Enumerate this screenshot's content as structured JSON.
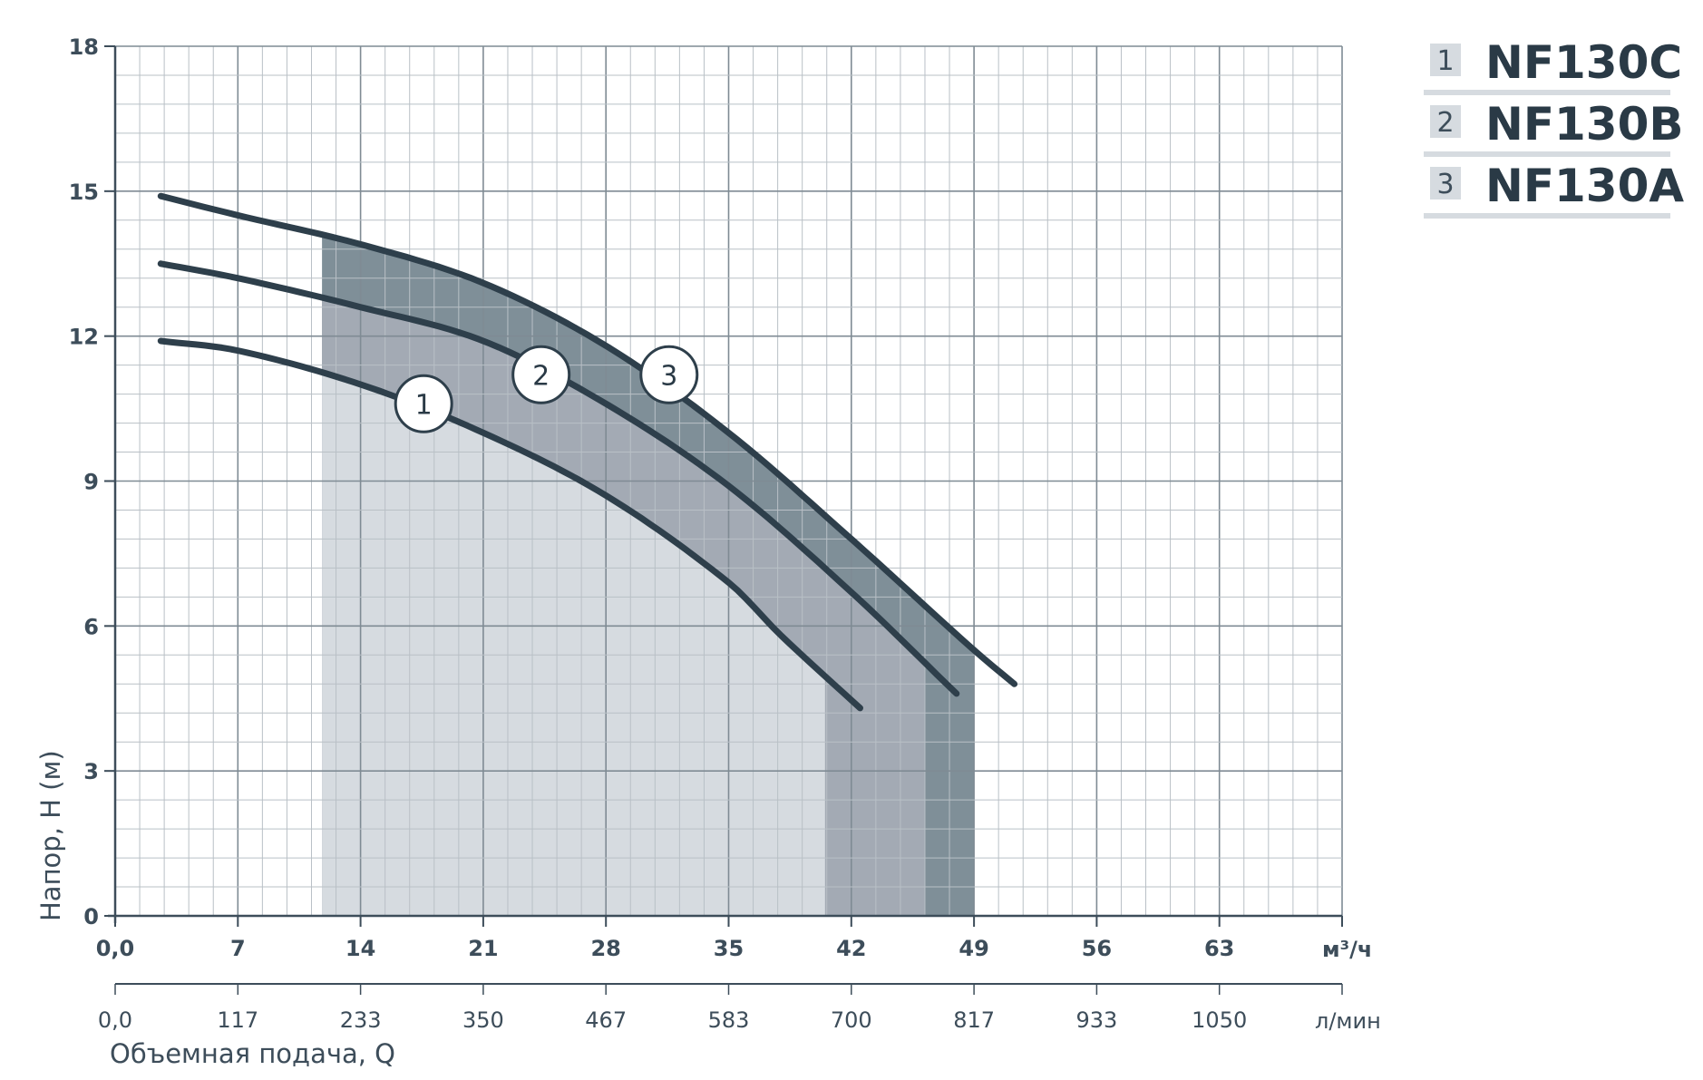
{
  "chart_data": {
    "type": "line",
    "xlabel": "Объемная подача, Q",
    "ylabel": "Напор, H (м)",
    "x_unit": "м³/ч",
    "x2_unit": "л/мин",
    "xlim": [
      0,
      70
    ],
    "ylim": [
      0,
      18
    ],
    "x_ticks": [
      "0,0",
      "7",
      "14",
      "21",
      "28",
      "35",
      "42",
      "49",
      "56",
      "63"
    ],
    "x2_ticks": [
      "0,0",
      "117",
      "233",
      "350",
      "467",
      "583",
      "700",
      "817",
      "933",
      "1050"
    ],
    "y_ticks": [
      "0",
      "3",
      "6",
      "9",
      "12",
      "15",
      "18"
    ],
    "grid": true,
    "legend_position": "top-right",
    "colors": {
      "curve": "#2e3f4b",
      "grid_major": "#7f8b94",
      "grid_minor": "#b9c0c6",
      "zone1": "#d6dbe0",
      "zone2": "#a3aab4",
      "zone3": "#7f8f98",
      "legend_box": "#d6dbe0"
    },
    "series": [
      {
        "id": "1",
        "name": "NF130C",
        "points": [
          [
            2.6,
            11.9
          ],
          [
            7,
            11.7
          ],
          [
            14,
            11.0
          ],
          [
            21,
            10.0
          ],
          [
            28,
            8.7
          ],
          [
            35,
            6.9
          ],
          [
            38,
            5.8
          ],
          [
            42.5,
            4.3
          ]
        ],
        "operating_range": [
          11.8,
          40.5
        ]
      },
      {
        "id": "2",
        "name": "NF130B",
        "points": [
          [
            2.6,
            13.5
          ],
          [
            7,
            13.2
          ],
          [
            14,
            12.6
          ],
          [
            21,
            11.9
          ],
          [
            28,
            10.6
          ],
          [
            35,
            8.9
          ],
          [
            42,
            6.7
          ],
          [
            48.0,
            4.6
          ]
        ],
        "operating_range": [
          11.8,
          46.2
        ]
      },
      {
        "id": "3",
        "name": "NF130A",
        "points": [
          [
            2.6,
            14.9
          ],
          [
            7,
            14.5
          ],
          [
            14,
            13.9
          ],
          [
            21,
            13.1
          ],
          [
            28,
            11.8
          ],
          [
            35,
            10.0
          ],
          [
            42,
            7.8
          ],
          [
            49,
            5.5
          ],
          [
            51.3,
            4.8
          ]
        ],
        "operating_range": [
          11.8,
          49.0
        ]
      }
    ],
    "curve_labels": [
      {
        "text": "1",
        "x": 17.6,
        "y": 10.6
      },
      {
        "text": "2",
        "x": 24.3,
        "y": 11.2
      },
      {
        "text": "3",
        "x": 31.6,
        "y": 11.2
      }
    ],
    "legend": [
      {
        "num": "1",
        "name": "NF130C"
      },
      {
        "num": "2",
        "name": "NF130B"
      },
      {
        "num": "3",
        "name": "NF130A"
      }
    ]
  }
}
